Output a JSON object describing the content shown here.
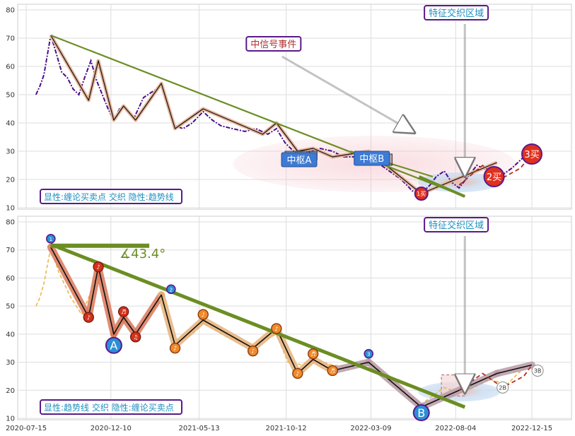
{
  "chart_data": [
    {
      "type": "line",
      "x_axis": {
        "ticks": [],
        "range": [
          "2020-07-15",
          "2023-01-15"
        ]
      },
      "y_axis": {
        "ticks": [
          10,
          20,
          30,
          40,
          50,
          60,
          70,
          80
        ],
        "range": [
          10,
          81
        ]
      },
      "grid": true,
      "price_series": [
        [
          "2020-08-01",
          50
        ],
        [
          "2020-08-08",
          53
        ],
        [
          "2020-08-15",
          57
        ],
        [
          "2020-08-20",
          63
        ],
        [
          "2020-08-27",
          71
        ],
        [
          "2020-09-05",
          65
        ],
        [
          "2020-09-15",
          58
        ],
        [
          "2020-09-25",
          56
        ],
        [
          "2020-10-05",
          52
        ],
        [
          "2020-10-15",
          50
        ],
        [
          "2020-10-25",
          56
        ],
        [
          "2020-11-05",
          62
        ],
        [
          "2020-11-15",
          55
        ],
        [
          "2020-11-25",
          50
        ],
        [
          "2020-12-05",
          45
        ],
        [
          "2020-12-15",
          41
        ],
        [
          "2020-12-25",
          45
        ],
        [
          "2021-01-05",
          45
        ],
        [
          "2021-01-20",
          42
        ],
        [
          "2021-02-05",
          49
        ],
        [
          "2021-02-20",
          51
        ],
        [
          "2021-03-08",
          53
        ],
        [
          "2021-03-20",
          45
        ],
        [
          "2021-04-01",
          39
        ],
        [
          "2021-04-15",
          38
        ],
        [
          "2021-05-01",
          40
        ],
        [
          "2021-05-20",
          44
        ],
        [
          "2021-06-05",
          41
        ],
        [
          "2021-06-20",
          39
        ],
        [
          "2021-07-10",
          38
        ],
        [
          "2021-08-01",
          37
        ],
        [
          "2021-08-20",
          38
        ],
        [
          "2021-09-10",
          36
        ],
        [
          "2021-09-25",
          38
        ],
        [
          "2021-10-10",
          33
        ],
        [
          "2021-10-25",
          30
        ],
        [
          "2021-11-10",
          29
        ],
        [
          "2021-11-25",
          30
        ],
        [
          "2021-12-10",
          31
        ],
        [
          "2022-01-01",
          30
        ],
        [
          "2022-01-20",
          28
        ],
        [
          "2022-02-10",
          28
        ],
        [
          "2022-03-01",
          29
        ],
        [
          "2022-03-20",
          26
        ],
        [
          "2022-04-10",
          23
        ],
        [
          "2022-05-01",
          20
        ],
        [
          "2022-05-20",
          16
        ],
        [
          "2022-06-05",
          15
        ],
        [
          "2022-06-20",
          18
        ],
        [
          "2022-07-01",
          21
        ],
        [
          "2022-07-15",
          23
        ],
        [
          "2022-07-28",
          19
        ],
        [
          "2022-08-10",
          17
        ],
        [
          "2022-08-25",
          21
        ],
        [
          "2022-09-10",
          25
        ],
        [
          "2022-10-01",
          23
        ],
        [
          "2022-10-20",
          21
        ],
        [
          "2022-11-10",
          24
        ],
        [
          "2022-12-01",
          28
        ],
        [
          "2022-12-15",
          29
        ]
      ],
      "bi_stroke": [
        [
          "2020-08-27",
          71
        ],
        [
          "2020-11-01",
          48
        ],
        [
          "2020-11-18",
          62
        ],
        [
          "2020-12-15",
          41
        ],
        [
          "2021-01-01",
          46
        ],
        [
          "2021-01-22",
          41
        ],
        [
          "2021-03-08",
          54
        ],
        [
          "2021-04-01",
          38
        ],
        [
          "2021-05-20",
          45
        ],
        [
          "2021-09-01",
          36
        ],
        [
          "2021-09-25",
          40
        ],
        [
          "2021-11-01",
          30
        ],
        [
          "2021-11-28",
          31
        ],
        [
          "2022-01-01",
          28
        ],
        [
          "2022-03-05",
          30
        ],
        [
          "2022-06-05",
          15
        ],
        [
          "2022-10-15",
          26
        ]
      ],
      "trendline": [
        [
          "2020-08-27",
          71
        ],
        [
          "2022-08-20",
          14
        ]
      ],
      "trendline_upper": [
        [
          "2022-02-01",
          30
        ],
        [
          "2022-06-25",
          21
        ]
      ],
      "annotations": [
        {
          "kind": "callout",
          "text": "中信号事件",
          "color": "#b03030",
          "at": [
            "2021-09-20",
            68
          ]
        },
        {
          "kind": "callout",
          "text": "特征交织区域",
          "color": "#1f8fc0",
          "at": [
            "2022-08-05",
            79
          ]
        },
        {
          "kind": "zhongshu",
          "text": "中枢A",
          "box": [
            [
              "2021-10-10",
              30
            ],
            [
              "2021-12-05",
              27
            ]
          ]
        },
        {
          "kind": "zhongshu",
          "text": "中枢B",
          "box": [
            [
              "2022-02-20",
              29
            ],
            [
              "2022-04-15",
              25
            ]
          ]
        },
        {
          "kind": "signal",
          "text": "1买",
          "at": [
            "2022-06-05",
            15
          ]
        },
        {
          "kind": "signal",
          "text": "2买",
          "at": [
            "2022-10-10",
            21
          ]
        },
        {
          "kind": "signal",
          "text": "3买",
          "at": [
            "2022-12-15",
            29
          ]
        }
      ],
      "legend_text": "显性:缠论买卖点 交织 隐性:趋势线",
      "legend_color": "#1f8fc0"
    },
    {
      "type": "line",
      "x_axis": {
        "ticks": [
          "2020-07-15",
          "2020-12-10",
          "2021-05-13",
          "2021-10-12",
          "2022-03-09",
          "2022-08-04",
          "2022-12-15"
        ],
        "range": [
          "2020-07-15",
          "2023-01-15"
        ]
      },
      "y_axis": {
        "ticks": [
          10,
          20,
          30,
          40,
          50,
          60,
          70,
          80
        ],
        "range": [
          10,
          81
        ]
      },
      "grid": true,
      "price_series": [
        [
          "2020-08-01",
          50
        ],
        [
          "2020-08-08",
          53
        ],
        [
          "2020-08-15",
          58
        ],
        [
          "2020-08-27",
          71
        ],
        [
          "2020-09-10",
          62
        ],
        [
          "2020-10-01",
          53
        ],
        [
          "2020-10-20",
          47
        ],
        [
          "2020-11-05",
          55
        ],
        [
          "2020-11-18",
          63
        ],
        [
          "2020-12-01",
          52
        ],
        [
          "2020-12-15",
          41
        ],
        [
          "2021-01-01",
          47
        ],
        [
          "2021-01-22",
          40
        ],
        [
          "2021-02-15",
          47
        ],
        [
          "2021-03-08",
          53
        ],
        [
          "2021-04-01",
          37
        ],
        [
          "2021-05-01",
          40
        ],
        [
          "2021-05-20",
          44
        ],
        [
          "2021-07-01",
          39
        ],
        [
          "2021-08-15",
          36
        ],
        [
          "2021-09-25",
          40
        ],
        [
          "2021-10-15",
          30
        ],
        [
          "2021-11-10",
          29
        ],
        [
          "2021-11-28",
          31
        ],
        [
          "2022-01-01",
          29
        ],
        [
          "2022-02-10",
          28
        ],
        [
          "2022-03-05",
          30
        ],
        [
          "2022-04-15",
          24
        ],
        [
          "2022-05-15",
          18
        ],
        [
          "2022-06-05",
          15
        ],
        [
          "2022-06-25",
          18
        ],
        [
          "2022-07-15",
          21
        ],
        [
          "2022-08-10",
          19
        ],
        [
          "2022-09-05",
          21
        ],
        [
          "2022-10-01",
          24
        ],
        [
          "2022-11-01",
          22
        ],
        [
          "2022-12-01",
          28
        ],
        [
          "2022-12-15",
          29
        ]
      ],
      "bi_stroke": [
        [
          "2020-08-27",
          71
        ],
        [
          "2020-11-01",
          46
        ],
        [
          "2020-11-18",
          64
        ],
        [
          "2020-12-15",
          40
        ],
        [
          "2021-01-01",
          46
        ],
        [
          "2021-01-22",
          40
        ],
        [
          "2021-03-08",
          54
        ],
        [
          "2021-04-01",
          36
        ],
        [
          "2021-05-20",
          45
        ],
        [
          "2021-08-15",
          35
        ],
        [
          "2021-09-25",
          42
        ],
        [
          "2021-11-01",
          26
        ],
        [
          "2021-11-28",
          31
        ],
        [
          "2022-01-01",
          27
        ],
        [
          "2022-03-05",
          30
        ],
        [
          "2022-06-05",
          14
        ],
        [
          "2022-10-15",
          26
        ],
        [
          "2022-12-15",
          29
        ]
      ],
      "trendline": [
        [
          "2020-08-27",
          72
        ],
        [
          "2022-08-20",
          14
        ]
      ],
      "horizontal_bar": [
        [
          "2020-08-27",
          71.5
        ],
        [
          "2021-02-15",
          71.5
        ]
      ],
      "angle_text": "∡43.4°",
      "annotations": [
        {
          "kind": "callout",
          "text": "特征交织区域",
          "color": "#1f8fc0",
          "at": [
            "2022-08-05",
            79
          ]
        },
        {
          "kind": "big_marker",
          "text": "A",
          "at": [
            "2020-12-15",
            36
          ]
        },
        {
          "kind": "big_marker",
          "text": "B",
          "at": [
            "2022-06-05",
            12
          ]
        },
        {
          "kind": "small_marker",
          "text": "1",
          "at": [
            "2020-08-27",
            74
          ]
        },
        {
          "kind": "small_marker",
          "text": "2",
          "at": [
            "2021-03-25",
            56
          ]
        },
        {
          "kind": "small_marker",
          "text": "3",
          "at": [
            "2022-03-05",
            33
          ]
        },
        {
          "kind": "signal_small",
          "text": "2B",
          "at": [
            "2022-10-25",
            21
          ]
        },
        {
          "kind": "signal_small",
          "text": "3B",
          "at": [
            "2022-12-25",
            27
          ]
        }
      ],
      "note_markers": [
        {
          "text": "♪",
          "at": [
            "2020-11-01",
            46
          ]
        },
        {
          "text": "♪",
          "at": [
            "2020-11-18",
            64
          ]
        },
        {
          "text": "♬",
          "at": [
            "2021-01-01",
            48
          ]
        },
        {
          "text": "♫",
          "at": [
            "2021-01-22",
            39
          ]
        },
        {
          "text": "♪",
          "at": [
            "2021-04-01",
            35
          ]
        },
        {
          "text": "♪",
          "at": [
            "2021-05-20",
            47
          ]
        },
        {
          "text": "♪",
          "at": [
            "2021-08-15",
            34
          ]
        },
        {
          "text": "♪",
          "at": [
            "2021-09-25",
            42
          ]
        },
        {
          "text": "♪",
          "at": [
            "2021-11-01",
            26
          ]
        },
        {
          "text": "♬",
          "at": [
            "2021-11-28",
            33
          ]
        },
        {
          "text": "♬",
          "at": [
            "2022-01-01",
            27
          ]
        }
      ],
      "legend_text": "显性:趋势线 交织 隐性:缠论买卖点",
      "legend_color": "#1f8fc0"
    }
  ]
}
